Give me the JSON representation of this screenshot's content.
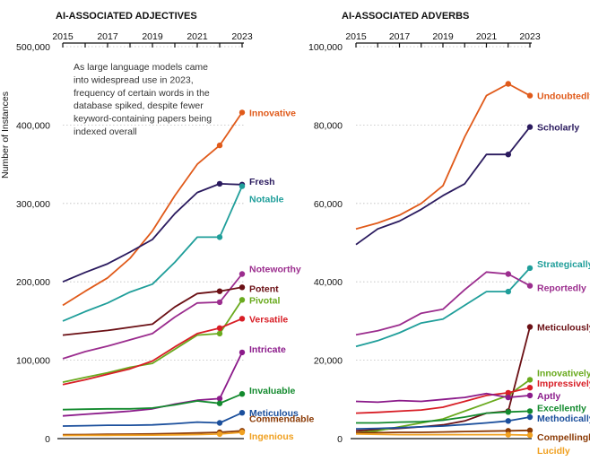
{
  "chart_data": [
    {
      "type": "line",
      "title": "AI-ASSOCIATED ADJECTIVES",
      "ylabel": "Number of Instances",
      "xlim": [
        2015,
        2023
      ],
      "ylim": [
        0,
        500000
      ],
      "x_ticks": [
        "2015",
        "2017",
        "2019",
        "2021",
        "2023"
      ],
      "y_ticks": [
        "0",
        "100,000",
        "200,000",
        "300,000",
        "400,000",
        "500,000"
      ],
      "annotation": "As large language models came into widespread use in 2023, frequency of certain words in the database spiked, despite fewer keyword-containing papers being indexed overall",
      "x": [
        2015,
        2016,
        2017,
        2018,
        2019,
        2020,
        2021,
        2022,
        2023
      ],
      "series": [
        {
          "name": "Innovative",
          "color": "#e05a1a",
          "values": [
            170000,
            188000,
            205000,
            230000,
            265000,
            310000,
            350000,
            374000,
            416000
          ]
        },
        {
          "name": "Fresh",
          "color": "#2a1a5e",
          "values": [
            200000,
            212000,
            223000,
            238000,
            254000,
            287000,
            314000,
            325000,
            324000
          ]
        },
        {
          "name": "Notable",
          "color": "#1f9e9a",
          "values": [
            150000,
            162000,
            173000,
            187000,
            197000,
            225000,
            257000,
            257000,
            322000
          ]
        },
        {
          "name": "Noteworthy",
          "color": "#9b2d8e",
          "values": [
            102000,
            111000,
            118000,
            126000,
            134000,
            155000,
            173000,
            174000,
            210000
          ]
        },
        {
          "name": "Potent",
          "color": "#6b1015",
          "values": [
            132000,
            135000,
            138000,
            142000,
            146000,
            168000,
            185000,
            188000,
            193000
          ]
        },
        {
          "name": "Pivotal",
          "color": "#6aaa1e",
          "values": [
            72000,
            78000,
            84000,
            91000,
            96000,
            114000,
            132000,
            134000,
            177000
          ]
        },
        {
          "name": "Versatile",
          "color": "#d81e26",
          "values": [
            69000,
            75000,
            82000,
            89000,
            99000,
            117000,
            134000,
            141000,
            153000
          ]
        },
        {
          "name": "Intricate",
          "color": "#8b1a8a",
          "values": [
            29000,
            31000,
            33000,
            35000,
            38000,
            44000,
            49000,
            51000,
            110000
          ]
        },
        {
          "name": "Invaluable",
          "color": "#138a2e",
          "values": [
            37000,
            37500,
            38000,
            38000,
            39000,
            43000,
            48000,
            45000,
            57000
          ]
        },
        {
          "name": "Meticulous",
          "color": "#1b4f9c",
          "values": [
            16000,
            16500,
            17000,
            17000,
            17500,
            19000,
            21000,
            20000,
            33000
          ]
        },
        {
          "name": "Commendable",
          "color": "#8b3a05",
          "values": [
            5000,
            5200,
            5500,
            5700,
            6000,
            6500,
            7200,
            8000,
            10000
          ]
        },
        {
          "name": "Ingenious",
          "color": "#f0a020",
          "values": [
            4000,
            4100,
            4200,
            4300,
            4500,
            4800,
            5200,
            5800,
            8000
          ]
        }
      ],
      "legend": "inline-right",
      "grid": true
    },
    {
      "type": "line",
      "title": "AI-ASSOCIATED ADVERBS",
      "ylabel": "",
      "xlim": [
        2015,
        2023
      ],
      "ylim": [
        0,
        100000
      ],
      "x_ticks": [
        "2015",
        "2017",
        "2019",
        "2021",
        "2023"
      ],
      "y_ticks": [
        "0",
        "20,000",
        "40,000",
        "60,000",
        "80,000",
        "100,000"
      ],
      "x": [
        2015,
        2016,
        2017,
        2018,
        2019,
        2020,
        2021,
        2022,
        2023
      ],
      "series": [
        {
          "name": "Undoubtedly",
          "color": "#e05a1a",
          "values": [
            53500,
            55000,
            57000,
            60000,
            64500,
            77000,
            87500,
            90500,
            87500
          ]
        },
        {
          "name": "Scholarly",
          "color": "#2a1a5e",
          "values": [
            49500,
            53500,
            55500,
            58500,
            62000,
            65000,
            72500,
            72500,
            79500
          ]
        },
        {
          "name": "Strategically",
          "color": "#1f9e9a",
          "values": [
            23500,
            25000,
            27000,
            29500,
            30500,
            34000,
            37500,
            37500,
            43500
          ]
        },
        {
          "name": "Reportedly",
          "color": "#9b2d8e",
          "values": [
            26500,
            27500,
            29000,
            32000,
            33000,
            38000,
            42500,
            42000,
            39000
          ]
        },
        {
          "name": "Meticulously",
          "color": "#6b1015",
          "values": [
            2000,
            2300,
            2600,
            3000,
            3500,
            4500,
            6500,
            7000,
            28500
          ]
        },
        {
          "name": "Innovatively",
          "color": "#6aaa1e",
          "values": [
            1500,
            2000,
            3000,
            4000,
            5000,
            7000,
            9000,
            11000,
            15000
          ]
        },
        {
          "name": "Impressively",
          "color": "#d81e26",
          "values": [
            6500,
            6700,
            7000,
            7300,
            8000,
            9500,
            11000,
            11700,
            13000
          ]
        },
        {
          "name": "Aptly",
          "color": "#8b1a8a",
          "values": [
            9500,
            9300,
            9700,
            9500,
            10000,
            10500,
            11500,
            10500,
            11000
          ]
        },
        {
          "name": "Excellently",
          "color": "#138a2e",
          "values": [
            4000,
            4000,
            4200,
            4300,
            4700,
            5500,
            6500,
            6800,
            7000
          ]
        },
        {
          "name": "Methodically",
          "color": "#1b4f9c",
          "values": [
            2500,
            2600,
            2800,
            3000,
            3200,
            3600,
            4000,
            4500,
            5500
          ]
        },
        {
          "name": "Compellingly",
          "color": "#8b3a05",
          "values": [
            1500,
            1500,
            1600,
            1600,
            1700,
            1800,
            1900,
            2000,
            2100
          ]
        },
        {
          "name": "Lucidly",
          "color": "#f0a020",
          "values": [
            1200,
            1100,
            1000,
            1000,
            1000,
            1000,
            1000,
            1000,
            900
          ]
        }
      ],
      "legend": "inline-right",
      "grid": true
    }
  ]
}
